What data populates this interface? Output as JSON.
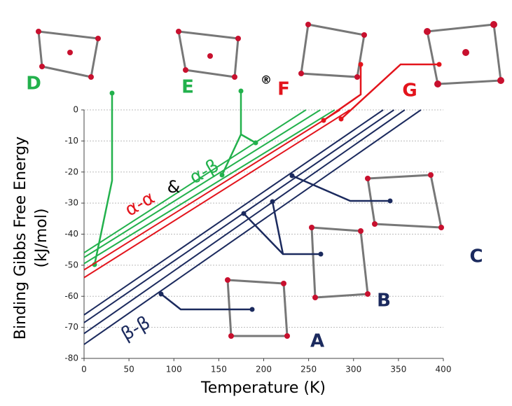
{
  "chart_data": {
    "type": "line",
    "x_label": "Temperature (K)",
    "y_label": [
      "Binding Gibbs Free Energy",
      "(kJ/mol)"
    ],
    "xlim": [
      0,
      400
    ],
    "xticks": [
      0,
      50,
      100,
      150,
      200,
      250,
      300,
      350,
      400
    ],
    "ylim": [
      -80,
      0
    ],
    "yticks": [
      -80,
      -70,
      -60,
      -50,
      -40,
      -30,
      -20,
      -10,
      0
    ],
    "grid": true,
    "series": [
      {
        "color": "#22b14c",
        "x": [
          0,
          247
        ],
        "values": [
          -46,
          0
        ]
      },
      {
        "color": "#22b14c",
        "x": [
          0,
          263
        ],
        "values": [
          -47.5,
          0
        ]
      },
      {
        "color": "#22b14c",
        "x": [
          0,
          279
        ],
        "values": [
          -49.5,
          0
        ]
      },
      {
        "color": "#e3141c",
        "x": [
          0,
          285
        ],
        "values": [
          -51.5,
          0
        ]
      },
      {
        "color": "#e3141c",
        "x": [
          0,
          296
        ],
        "values": [
          -54,
          0
        ]
      },
      {
        "color": "#1b2a5e",
        "x": [
          0,
          333
        ],
        "values": [
          -66,
          0
        ]
      },
      {
        "color": "#1b2a5e",
        "x": [
          0,
          345
        ],
        "values": [
          -68.5,
          0
        ]
      },
      {
        "color": "#1b2a5e",
        "x": [
          0,
          357
        ],
        "values": [
          -72,
          0
        ]
      },
      {
        "color": "#1b2a5e",
        "x": [
          0,
          375
        ],
        "values": [
          -75.5,
          0
        ]
      }
    ],
    "annotations": [
      {
        "text": "D",
        "color": "#22b14c"
      },
      {
        "text": "E",
        "color": "#22b14c"
      },
      {
        "text": "®",
        "color": "#000000"
      },
      {
        "text": "F",
        "color": "#e3141c"
      },
      {
        "text": "G",
        "color": "#e3141c"
      },
      {
        "text": "C",
        "color": "#1b2a5e"
      },
      {
        "text": "B",
        "color": "#1b2a5e"
      },
      {
        "text": "A",
        "color": "#1b2a5e"
      },
      {
        "text": "α-α",
        "color": "#e3141c"
      },
      {
        "text": "&",
        "color": "#000000"
      },
      {
        "text": "α-β",
        "color": "#22b14c"
      },
      {
        "text": "β-β",
        "color": "#1b2a5e"
      }
    ]
  }
}
